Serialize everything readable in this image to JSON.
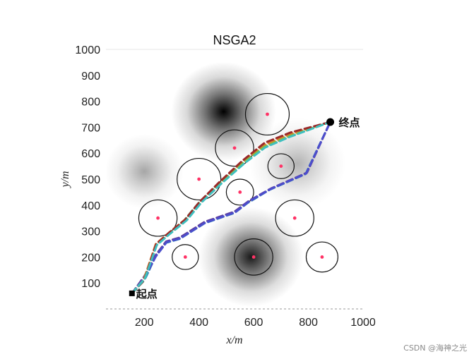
{
  "chart_data": {
    "type": "line",
    "title": "NSGA2",
    "xlabel": "x/m",
    "ylabel": "y/m",
    "xlim": [
      60,
      1000
    ],
    "ylim": [
      0,
      1000
    ],
    "xticks": [
      200,
      400,
      600,
      800,
      1000
    ],
    "yticks": [
      100,
      200,
      300,
      400,
      500,
      600,
      700,
      800,
      900,
      1000
    ],
    "grid": false,
    "start": {
      "label": "起点",
      "x": 155,
      "y": 60
    },
    "end": {
      "label": "终点",
      "x": 880,
      "y": 720
    },
    "terrain_peaks": [
      {
        "x": 490,
        "y": 760,
        "height": 1.0,
        "spread": 120
      },
      {
        "x": 590,
        "y": 200,
        "height": 0.9,
        "spread": 120
      },
      {
        "x": 200,
        "y": 530,
        "height": 0.35,
        "spread": 90
      },
      {
        "x": 760,
        "y": 560,
        "height": 0.3,
        "spread": 110
      }
    ],
    "obstacles": [
      {
        "x": 650,
        "y": 750,
        "r": 80
      },
      {
        "x": 530,
        "y": 620,
        "r": 70
      },
      {
        "x": 400,
        "y": 500,
        "r": 80
      },
      {
        "x": 700,
        "y": 550,
        "r": 48
      },
      {
        "x": 550,
        "y": 450,
        "r": 50
      },
      {
        "x": 250,
        "y": 350,
        "r": 70
      },
      {
        "x": 750,
        "y": 350,
        "r": 70
      },
      {
        "x": 350,
        "y": 200,
        "r": 48
      },
      {
        "x": 600,
        "y": 200,
        "r": 70
      },
      {
        "x": 850,
        "y": 200,
        "r": 58
      }
    ],
    "series": [
      {
        "color": "#1f77b4",
        "x": [
          155,
          205,
          240,
          280,
          330,
          420,
          530,
          580,
          660,
          790,
          880
        ],
        "y": [
          60,
          120,
          200,
          255,
          270,
          330,
          370,
          410,
          460,
          520,
          720
        ]
      },
      {
        "color": "#5d3c99",
        "x": [
          155,
          200,
          240,
          280,
          330,
          420,
          530,
          585,
          665,
          795,
          880
        ],
        "y": [
          60,
          125,
          205,
          260,
          275,
          335,
          375,
          418,
          465,
          525,
          720
        ]
      },
      {
        "color": "#4d4dcc",
        "x": [
          155,
          202,
          242,
          282,
          332,
          422,
          532,
          583,
          662,
          792,
          880
        ],
        "y": [
          60,
          122,
          202,
          258,
          272,
          332,
          372,
          414,
          462,
          522,
          720
        ]
      },
      {
        "color": "#2f9e6a",
        "x": [
          155,
          200,
          245,
          290,
          345,
          400,
          470,
          555,
          630,
          720,
          880
        ],
        "y": [
          60,
          110,
          245,
          290,
          340,
          410,
          480,
          560,
          620,
          660,
          720
        ]
      },
      {
        "color": "#e07b2b",
        "x": [
          155,
          198,
          242,
          292,
          350,
          405,
          475,
          560,
          635,
          725,
          880
        ],
        "y": [
          60,
          112,
          250,
          295,
          345,
          415,
          485,
          565,
          630,
          670,
          720
        ]
      },
      {
        "color": "#8fb53a",
        "x": [
          155,
          200,
          244,
          294,
          352,
          408,
          478,
          562,
          638,
          728,
          880
        ],
        "y": [
          60,
          114,
          248,
          293,
          343,
          413,
          483,
          563,
          625,
          665,
          720
        ]
      },
      {
        "color": "#9a2a2a",
        "x": [
          155,
          200,
          243,
          291,
          348,
          402,
          472,
          558,
          640,
          735,
          880
        ],
        "y": [
          60,
          111,
          249,
          294,
          342,
          412,
          486,
          570,
          640,
          680,
          720
        ]
      },
      {
        "color": "#3fbfbf",
        "x": [
          155,
          202,
          246,
          296,
          355,
          410,
          480,
          566,
          642,
          730,
          880
        ],
        "y": [
          60,
          116,
          246,
          291,
          341,
          411,
          481,
          561,
          622,
          662,
          720
        ]
      }
    ]
  },
  "watermark": "CSDN @海神之光"
}
